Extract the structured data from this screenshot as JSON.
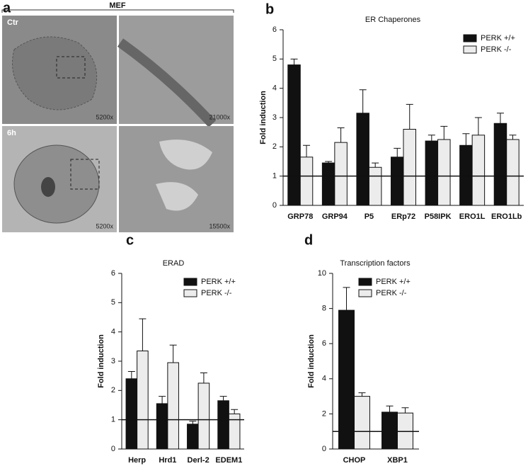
{
  "panel_a": {
    "letter": "a",
    "title": "MEF",
    "images": [
      {
        "label": "Ctr",
        "magnification": "5200x"
      },
      {
        "magnification": "21000x"
      },
      {
        "label": "6h",
        "magnification": "5200x"
      },
      {
        "magnification": "15500x"
      }
    ]
  },
  "chart_data": [
    {
      "letter": "b",
      "type": "bar",
      "title": "ER Chaperones",
      "ylabel": "Fold induction",
      "categories": [
        "GRP78",
        "GRP94",
        "P5",
        "ERp72",
        "P58IPK",
        "ERO1L",
        "ERO1Lb"
      ],
      "series": [
        {
          "name": "PERK +/+",
          "color": "#111111",
          "values": [
            4.8,
            1.45,
            3.15,
            1.65,
            2.2,
            2.05,
            2.8
          ],
          "errors": [
            0.2,
            0.05,
            0.8,
            0.3,
            0.2,
            0.4,
            0.35
          ]
        },
        {
          "name": "PERK -/-",
          "color": "#ececec",
          "values": [
            1.65,
            2.15,
            1.3,
            2.6,
            2.25,
            2.4,
            2.25
          ],
          "errors": [
            0.4,
            0.5,
            0.15,
            0.85,
            0.45,
            0.6,
            0.15
          ]
        }
      ],
      "ylim": [
        0,
        6
      ],
      "yticks": [
        0,
        1,
        2,
        3,
        4,
        5,
        6
      ],
      "reference_line": 1,
      "legend": "upper right"
    },
    {
      "letter": "c",
      "type": "bar",
      "title": "ERAD",
      "ylabel": "Fold induction",
      "categories": [
        "Herp",
        "Hrd1",
        "Derl-2",
        "EDEM1"
      ],
      "series": [
        {
          "name": "PERK +/+",
          "color": "#111111",
          "values": [
            2.4,
            1.55,
            0.85,
            1.65
          ],
          "errors": [
            0.25,
            0.25,
            0.1,
            0.15
          ]
        },
        {
          "name": "PERK -/-",
          "color": "#ececec",
          "values": [
            3.35,
            2.95,
            2.25,
            1.2
          ],
          "errors": [
            1.1,
            0.6,
            0.35,
            0.15
          ]
        }
      ],
      "ylim": [
        0,
        6
      ],
      "yticks": [
        0,
        1,
        2,
        3,
        4,
        5,
        6
      ],
      "reference_line": 1,
      "legend": "upper right"
    },
    {
      "letter": "d",
      "type": "bar",
      "title": "Transcription factors",
      "ylabel": "Fold induction",
      "categories": [
        "CHOP",
        "XBP1"
      ],
      "series": [
        {
          "name": "PERK +/+",
          "color": "#111111",
          "values": [
            7.9,
            2.1
          ],
          "errors": [
            1.3,
            0.35
          ]
        },
        {
          "name": "PERK -/-",
          "color": "#ececec",
          "values": [
            3.0,
            2.05
          ],
          "errors": [
            0.2,
            0.3
          ]
        }
      ],
      "ylim": [
        0,
        10
      ],
      "yticks": [
        0,
        2,
        4,
        6,
        8,
        10
      ],
      "reference_line": 1,
      "legend": "upper right"
    }
  ]
}
